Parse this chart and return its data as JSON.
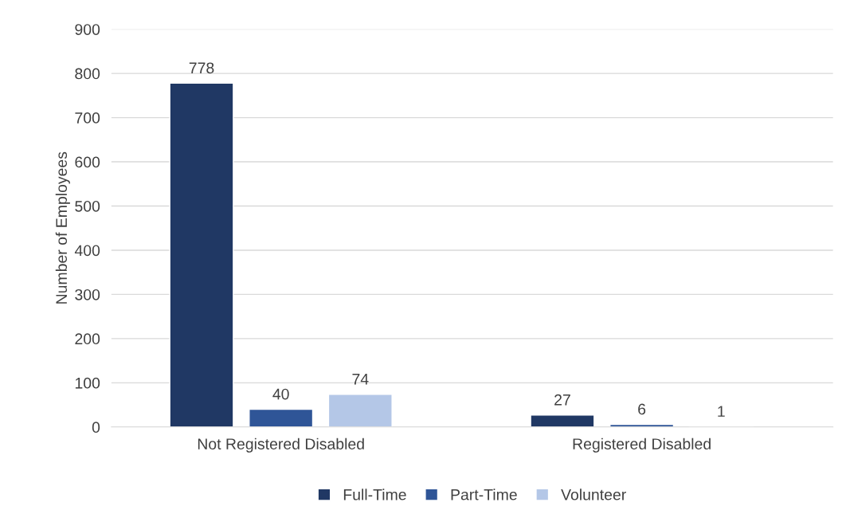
{
  "chart_data": {
    "type": "bar",
    "ylabel": "Number of Employees",
    "categories": [
      "Not Registered Disabled",
      "Registered Disabled"
    ],
    "series": [
      {
        "name": "Full-Time",
        "color": "#203864",
        "values": [
          778,
          27
        ]
      },
      {
        "name": "Part-Time",
        "color": "#2f5597",
        "values": [
          40,
          6
        ]
      },
      {
        "name": "Volunteer",
        "color": "#b4c7e7",
        "values": [
          74,
          1
        ]
      }
    ],
    "ylim": [
      0,
      900
    ],
    "yticks": [
      0,
      100,
      200,
      300,
      400,
      500,
      600,
      700,
      800,
      900
    ],
    "grid": "y",
    "legend": "bottom",
    "data_labels": true
  }
}
